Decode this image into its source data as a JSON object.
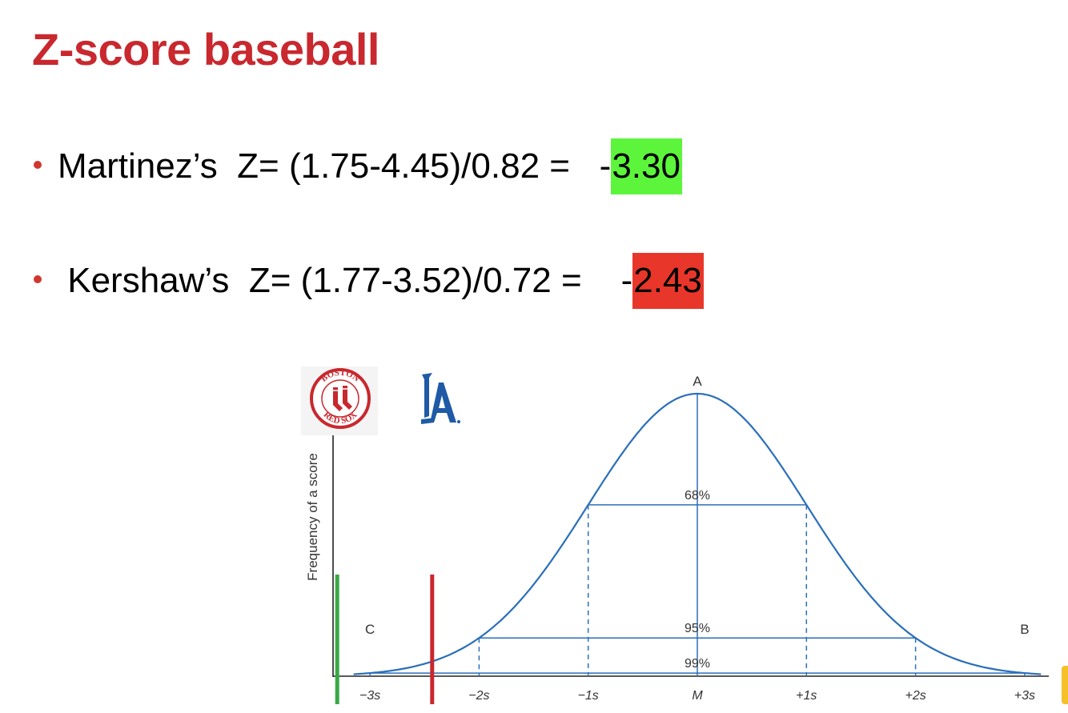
{
  "title": "Z-score baseball",
  "bullets": [
    {
      "name": "Martinez’s",
      "formula": "Z= (1.75-4.45)/0.82  =",
      "sign": "-",
      "value": "3.30",
      "highlight": "#5cf53c"
    },
    {
      "name": "Kershaw’s",
      "formula": "Z= (1.77-3.52)/0.72 =",
      "sign": "-",
      "value": "2.43",
      "highlight": "#e8362a"
    }
  ],
  "logos": {
    "red_sox": {
      "top": "BOSTON",
      "bottom": "RED SOX"
    },
    "dodgers": {
      "mark": "LA"
    }
  },
  "diagram": {
    "ylabel": "Frequency of a score",
    "ticks": [
      "−3s",
      "−2s",
      "−1s",
      "M",
      "+1s",
      "+2s",
      "+3s"
    ],
    "points": {
      "peak": "A",
      "right": "B",
      "left": "C"
    },
    "bands": [
      "68%",
      "95%",
      "99%"
    ],
    "markers": [
      {
        "player": "Martinez",
        "z": -3.3,
        "color": "#3aa845"
      },
      {
        "player": "Kershaw",
        "z": -2.43,
        "color": "#c8282e"
      }
    ],
    "curve_color": "#2a6fba"
  }
}
